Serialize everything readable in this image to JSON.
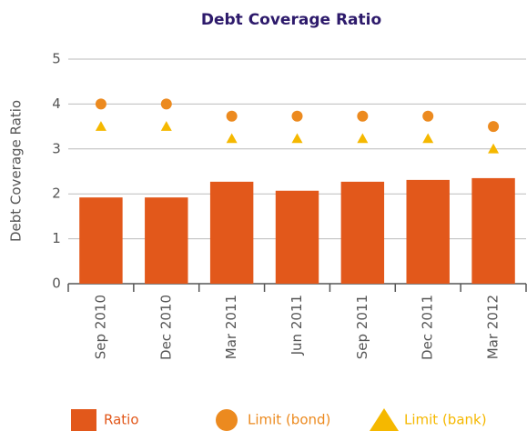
{
  "chart_data": {
    "type": "bar",
    "title": "Debt Coverage Ratio",
    "y_label": "Debt Coverage Ratio",
    "categories": [
      "Sep 2010",
      "Dec 2010",
      "Mar 2011",
      "Jun 2011",
      "Sep 2011",
      "Dec 2011",
      "Mar 2012"
    ],
    "series": [
      {
        "name": "Ratio",
        "type": "bar",
        "color": "#e2581b",
        "values": [
          1.92,
          1.92,
          2.27,
          2.07,
          2.27,
          2.31,
          2.35
        ]
      },
      {
        "name": "Limit (bond)",
        "type": "scatter",
        "marker": "circle",
        "color": "#ec8a1f",
        "values": [
          4,
          4,
          3.73,
          3.73,
          3.73,
          3.73,
          3.5
        ]
      },
      {
        "name": "Limit (bank)",
        "type": "scatter",
        "marker": "triangle",
        "color": "#f5b800",
        "values": [
          3.5,
          3.5,
          3.23,
          3.23,
          3.23,
          3.23,
          3.0
        ]
      }
    ],
    "ylim": [
      0,
      5
    ],
    "yticks": [
      0,
      1,
      2,
      3,
      4,
      5
    ],
    "grid": true,
    "legend": "bottom"
  }
}
